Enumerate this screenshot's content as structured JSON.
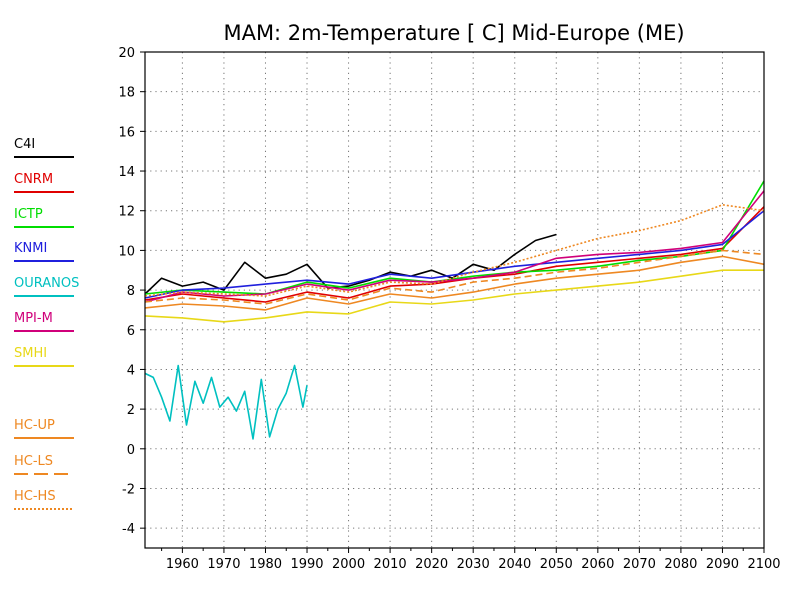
{
  "chart_data": {
    "type": "line",
    "title": "MAM: 2m-Temperature [  C] Mid-Europe (ME)",
    "xlim": [
      1951,
      2100
    ],
    "ylim": [
      -5,
      20
    ],
    "x_ticks": [
      "1960",
      "1970",
      "1980",
      "1990",
      "2000",
      "2010",
      "2020",
      "2030",
      "2040",
      "2050",
      "2060",
      "2070",
      "2080",
      "2090",
      "2100"
    ],
    "y_ticks": [
      "20",
      "18",
      "16",
      "14",
      "12",
      "10",
      "8",
      "6",
      "4",
      "2",
      "0",
      "-2",
      "-4"
    ],
    "grid": true,
    "legend_position": "left",
    "series": [
      {
        "name": "C4I",
        "color": "#000000",
        "dash": "solid",
        "x": [
          1951,
          1955,
          1960,
          1965,
          1970,
          1975,
          1980,
          1985,
          1990,
          1995,
          2000,
          2005,
          2010,
          2015,
          2020,
          2025,
          2030,
          2035,
          2040,
          2045,
          2050
        ],
        "y": [
          7.8,
          8.6,
          8.2,
          8.4,
          8.0,
          9.4,
          8.6,
          8.8,
          9.3,
          8.1,
          8.2,
          8.5,
          8.9,
          8.7,
          9.0,
          8.6,
          9.3,
          9.0,
          9.8,
          10.5,
          10.8
        ]
      },
      {
        "name": "CNRM",
        "color": "#e00000",
        "dash": "solid",
        "x": [
          1951,
          1960,
          1970,
          1980,
          1990,
          2000,
          2010,
          2020,
          2030,
          2040,
          2050,
          2060,
          2070,
          2080,
          2090,
          2100
        ],
        "y": [
          7.5,
          7.8,
          7.6,
          7.4,
          7.9,
          7.6,
          8.2,
          8.3,
          8.6,
          8.8,
          9.2,
          9.4,
          9.6,
          9.8,
          10.1,
          12.2
        ]
      },
      {
        "name": "ICTP",
        "color": "#00dd00",
        "dash": "solid",
        "x": [
          1951,
          1960,
          1970,
          1980,
          1990,
          2000,
          2010,
          2020,
          2030,
          2040,
          2050,
          2060,
          2070,
          2080,
          2090,
          2100
        ],
        "y": [
          7.8,
          8.0,
          7.9,
          7.8,
          8.4,
          8.1,
          8.6,
          8.4,
          8.7,
          8.9,
          9.0,
          9.2,
          9.5,
          9.7,
          10.0,
          13.5
        ]
      },
      {
        "name": "KNMI",
        "color": "#2020dd",
        "dash": "solid",
        "x": [
          1951,
          1960,
          1970,
          1980,
          1990,
          2000,
          2010,
          2020,
          2030,
          2040,
          2050,
          2060,
          2070,
          2080,
          2090,
          2100
        ],
        "y": [
          7.6,
          8.0,
          8.1,
          8.3,
          8.5,
          8.3,
          8.8,
          8.6,
          8.9,
          9.2,
          9.4,
          9.6,
          9.8,
          10.0,
          10.3,
          12.0
        ]
      },
      {
        "name": "OURANOS",
        "color": "#00c0c0",
        "dash": "solid",
        "x": [
          1951,
          1953,
          1955,
          1957,
          1959,
          1961,
          1963,
          1965,
          1967,
          1969,
          1971,
          1973,
          1975,
          1977,
          1979,
          1981,
          1983,
          1985,
          1987,
          1989,
          1990
        ],
        "y": [
          3.8,
          3.6,
          2.6,
          1.4,
          4.2,
          1.2,
          3.4,
          2.3,
          3.6,
          2.1,
          2.6,
          1.9,
          2.9,
          0.5,
          3.5,
          0.6,
          2.0,
          2.8,
          4.2,
          2.1,
          3.2
        ]
      },
      {
        "name": "MPI-M",
        "color": "#d0007a",
        "dash": "solid",
        "x": [
          1951,
          1960,
          1970,
          1980,
          1990,
          2000,
          2010,
          2020,
          2030,
          2040,
          2050,
          2060,
          2070,
          2080,
          2090,
          2100
        ],
        "y": [
          7.4,
          7.9,
          7.7,
          7.8,
          8.3,
          8.0,
          8.5,
          8.4,
          8.6,
          8.9,
          9.6,
          9.8,
          9.9,
          10.1,
          10.4,
          13.0
        ]
      },
      {
        "name": "SMHI",
        "color": "#e8d818",
        "dash": "solid",
        "x": [
          1951,
          1960,
          1970,
          1980,
          1990,
          2000,
          2010,
          2020,
          2030,
          2040,
          2050,
          2060,
          2070,
          2080,
          2090,
          2100
        ],
        "y": [
          6.7,
          6.6,
          6.4,
          6.6,
          6.9,
          6.8,
          7.4,
          7.3,
          7.5,
          7.8,
          8.0,
          8.2,
          8.4,
          8.7,
          9.0,
          9.0
        ]
      },
      {
        "name": "HC-UP",
        "color": "#ee8822",
        "dash": "solid",
        "x": [
          1951,
          1960,
          1970,
          1980,
          1990,
          2000,
          2010,
          2020,
          2030,
          2040,
          2050,
          2060,
          2070,
          2080,
          2090,
          2100
        ],
        "y": [
          7.1,
          7.3,
          7.2,
          7.0,
          7.6,
          7.3,
          7.8,
          7.6,
          7.9,
          8.3,
          8.6,
          8.8,
          9.0,
          9.4,
          9.7,
          9.3
        ]
      },
      {
        "name": "HC-LS",
        "color": "#ee8822",
        "dash": "dashed",
        "x": [
          1951,
          1960,
          1970,
          1980,
          1990,
          2000,
          2010,
          2020,
          2030,
          2040,
          2050,
          2060,
          2070,
          2080,
          2090,
          2100
        ],
        "y": [
          7.4,
          7.6,
          7.5,
          7.3,
          7.8,
          7.5,
          8.1,
          7.9,
          8.4,
          8.6,
          8.9,
          9.1,
          9.4,
          9.7,
          10.0,
          9.8
        ]
      },
      {
        "name": "HC-HS",
        "color": "#ee8822",
        "dash": "dotted",
        "x": [
          1951,
          1960,
          1970,
          1980,
          1990,
          2000,
          2010,
          2020,
          2030,
          2040,
          2050,
          2060,
          2070,
          2080,
          2090,
          2100
        ],
        "y": [
          7.7,
          7.9,
          7.8,
          7.7,
          8.2,
          7.9,
          8.4,
          8.3,
          8.9,
          9.4,
          10.0,
          10.6,
          11.0,
          11.5,
          12.3,
          12.0
        ]
      }
    ]
  }
}
